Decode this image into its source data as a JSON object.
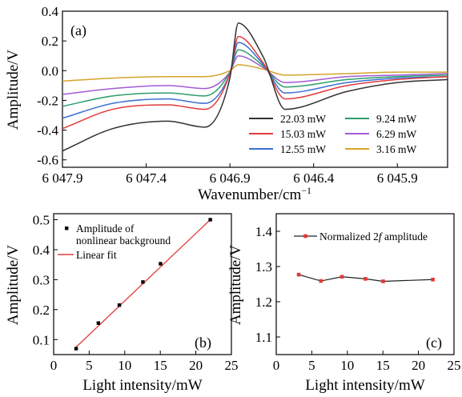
{
  "chart_data": [
    {
      "panel": "(a)",
      "type": "line",
      "xlabel": "Wavenumber/cm",
      "xlabel_sup": "−1",
      "ylabel": "Amplitude/V",
      "x_reversed": true,
      "xlim": [
        6047.9,
        6045.6
      ],
      "ylim": [
        -0.65,
        0.4
      ],
      "xticks": [
        6047.9,
        6047.4,
        6046.9,
        6046.4,
        6045.9
      ],
      "xtick_labels": [
        "6 047.9",
        "6 047.4",
        "6 046.9",
        "6 046.4",
        "6 045.9"
      ],
      "yticks": [
        0.4,
        0.2,
        0.0,
        -0.2,
        -0.4,
        -0.6
      ],
      "ytick_labels": [
        "0.4",
        "0.2",
        "0.0",
        "-0.2",
        "-0.4",
        "-0.6"
      ],
      "legend_position": "bottom-right",
      "series": [
        {
          "name": "22.03 mW",
          "color": "#333333",
          "x": [
            6047.9,
            6047.6,
            6047.27,
            6047.05,
            6046.9,
            6046.85,
            6046.7,
            6046.57,
            6046.2,
            6045.9,
            6045.6
          ],
          "values": [
            -0.54,
            -0.39,
            -0.34,
            -0.38,
            -0.05,
            0.32,
            0.09,
            -0.26,
            -0.14,
            -0.08,
            -0.06
          ]
        },
        {
          "name": "15.03 mW",
          "color": "#e23a3a",
          "x": [
            6047.9,
            6047.6,
            6047.27,
            6047.05,
            6046.9,
            6046.85,
            6046.7,
            6046.57,
            6046.2,
            6045.9,
            6045.6
          ],
          "values": [
            -0.39,
            -0.26,
            -0.23,
            -0.26,
            -0.02,
            0.23,
            0.05,
            -0.19,
            -0.1,
            -0.06,
            -0.04
          ]
        },
        {
          "name": "12.55 mW",
          "color": "#3b6fd4",
          "x": [
            6047.9,
            6047.6,
            6047.27,
            6047.05,
            6046.9,
            6046.85,
            6046.7,
            6046.57,
            6046.2,
            6045.9,
            6045.6
          ],
          "values": [
            -0.32,
            -0.22,
            -0.19,
            -0.22,
            -0.02,
            0.19,
            0.04,
            -0.15,
            -0.08,
            -0.05,
            -0.04
          ]
        },
        {
          "name": "9.24 mW",
          "color": "#2e9e6a",
          "x": [
            6047.9,
            6047.6,
            6047.27,
            6047.05,
            6046.9,
            6046.85,
            6046.7,
            6046.57,
            6046.2,
            6045.9,
            6045.6
          ],
          "values": [
            -0.24,
            -0.17,
            -0.15,
            -0.17,
            -0.01,
            0.14,
            0.03,
            -0.11,
            -0.06,
            -0.04,
            -0.03
          ]
        },
        {
          "name": "6.29 mW",
          "color": "#a25ad6",
          "x": [
            6047.9,
            6047.6,
            6047.27,
            6047.05,
            6046.9,
            6046.85,
            6046.7,
            6046.57,
            6046.2,
            6045.9,
            6045.6
          ],
          "values": [
            -0.16,
            -0.12,
            -0.1,
            -0.12,
            -0.01,
            0.1,
            0.02,
            -0.08,
            -0.04,
            -0.03,
            -0.02
          ]
        },
        {
          "name": "3.16 mW",
          "color": "#d4a52a",
          "x": [
            6047.9,
            6047.6,
            6047.27,
            6047.05,
            6046.9,
            6046.85,
            6046.7,
            6046.57,
            6046.2,
            6045.9,
            6045.6
          ],
          "values": [
            -0.07,
            -0.05,
            -0.04,
            -0.04,
            0.0,
            0.04,
            0.01,
            -0.03,
            -0.02,
            -0.01,
            -0.01
          ]
        }
      ]
    },
    {
      "panel": "(b)",
      "type": "scatter",
      "xlabel": "Light intensity/mW",
      "ylabel": "Amplitude/V",
      "xlim": [
        0,
        25
      ],
      "ylim": [
        0.05,
        0.52
      ],
      "xticks": [
        0,
        5,
        10,
        15,
        20,
        25
      ],
      "yticks": [
        0.1,
        0.2,
        0.3,
        0.4,
        0.5
      ],
      "ytick_labels": [
        "0.1",
        "0.2",
        "0.3",
        "0.4",
        "0.5"
      ],
      "legend_position": "top-left",
      "series": [
        {
          "name_line1": "Amplitude of",
          "name_line2": "nonlinear background",
          "color": "#000000",
          "x": [
            3.16,
            6.29,
            9.24,
            12.55,
            15.03,
            22.03
          ],
          "values": [
            0.07,
            0.155,
            0.215,
            0.292,
            0.353,
            0.5
          ]
        },
        {
          "name": "Linear fit",
          "color": "#e23a3a",
          "x": [
            3.16,
            22.03
          ],
          "values": [
            0.075,
            0.5
          ]
        }
      ]
    },
    {
      "panel": "(c)",
      "type": "line",
      "xlabel": "Light intensity/mW",
      "ylabel": "Amplitude/V",
      "xlim": [
        0,
        25
      ],
      "ylim": [
        1.05,
        1.45
      ],
      "xticks": [
        0,
        5,
        10,
        15,
        20,
        25
      ],
      "yticks": [
        1.1,
        1.2,
        1.3,
        1.4
      ],
      "ytick_labels": [
        "1.1",
        "1.2",
        "1.3",
        "1.4"
      ],
      "legend_position": "top",
      "series": [
        {
          "name_pre": "Normalized 2",
          "name_italic": "f",
          "name_post": " amplitude",
          "color": "#222222",
          "marker_color": "#e23a3a",
          "x": [
            3.16,
            6.29,
            9.24,
            12.55,
            15.03,
            22.03
          ],
          "values": [
            1.277,
            1.259,
            1.271,
            1.265,
            1.258,
            1.263
          ]
        }
      ]
    }
  ]
}
